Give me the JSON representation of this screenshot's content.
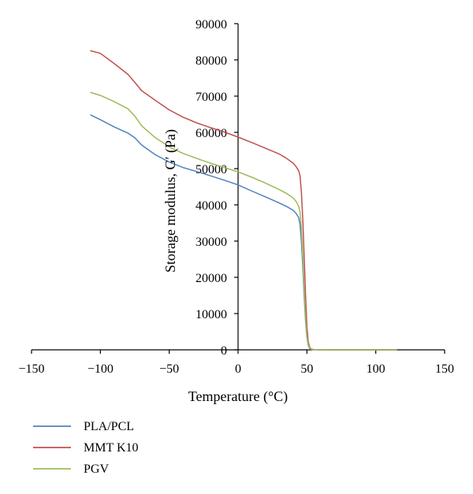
{
  "chart_data": {
    "type": "line",
    "xlabel": "Temperature (°C)",
    "ylabel": "Storage modulus, G′ (Pa)",
    "xlim": [
      -150,
      150
    ],
    "ylim": [
      0,
      90000
    ],
    "x_ticks": [
      -150,
      -100,
      -50,
      0,
      50,
      100,
      150
    ],
    "y_ticks": [
      0,
      10000,
      20000,
      30000,
      40000,
      50000,
      60000,
      70000,
      80000,
      90000
    ],
    "grid": false,
    "legend_position": "bottom-left",
    "series": [
      {
        "name": "PLA/PCL",
        "color": "#4f81bd",
        "x": [
          -107,
          -100,
          -90,
          -80,
          -75,
          -70,
          -60,
          -50,
          -40,
          -30,
          -20,
          -10,
          0,
          10,
          20,
          30,
          35,
          40,
          42,
          44,
          45,
          46,
          47,
          48,
          49,
          50,
          51,
          52,
          53,
          55,
          60,
          80,
          100,
          115
        ],
        "y": [
          64800,
          63500,
          61500,
          59800,
          58500,
          56500,
          53800,
          51800,
          50300,
          49200,
          48000,
          46800,
          45500,
          43800,
          42200,
          40500,
          39600,
          38500,
          37700,
          36500,
          34500,
          30000,
          23000,
          15000,
          8000,
          3500,
          1200,
          400,
          150,
          60,
          20,
          10,
          5,
          0
        ]
      },
      {
        "name": "MMT K10",
        "color": "#c0504d",
        "x": [
          -107,
          -100,
          -90,
          -80,
          -75,
          -70,
          -60,
          -50,
          -40,
          -30,
          -20,
          -10,
          0,
          10,
          20,
          30,
          35,
          40,
          42,
          44,
          45,
          46,
          47,
          48,
          49,
          50,
          51,
          52,
          53,
          55,
          60,
          80,
          100,
          115
        ],
        "y": [
          82500,
          81800,
          79000,
          76000,
          73800,
          71500,
          68800,
          66200,
          64200,
          62600,
          61300,
          60100,
          58700,
          57200,
          55600,
          54000,
          52900,
          51500,
          50600,
          49400,
          48000,
          43500,
          36000,
          26000,
          15000,
          6500,
          2200,
          700,
          250,
          80,
          30,
          10,
          5,
          0
        ]
      },
      {
        "name": "PGV",
        "color": "#9bbb59",
        "x": [
          -107,
          -100,
          -90,
          -80,
          -75,
          -70,
          -60,
          -50,
          -40,
          -30,
          -20,
          -10,
          0,
          10,
          20,
          30,
          35,
          40,
          42,
          44,
          45,
          46,
          47,
          48,
          49,
          50,
          51,
          52,
          53,
          55,
          60,
          80,
          100,
          115
        ],
        "y": [
          71000,
          70200,
          68500,
          66500,
          64500,
          61800,
          58500,
          56000,
          54200,
          52800,
          51500,
          50300,
          49100,
          47600,
          46000,
          44200,
          43200,
          41900,
          41000,
          39600,
          38000,
          33500,
          25500,
          16500,
          9000,
          4000,
          1400,
          450,
          180,
          70,
          25,
          10,
          5,
          0
        ]
      }
    ]
  }
}
